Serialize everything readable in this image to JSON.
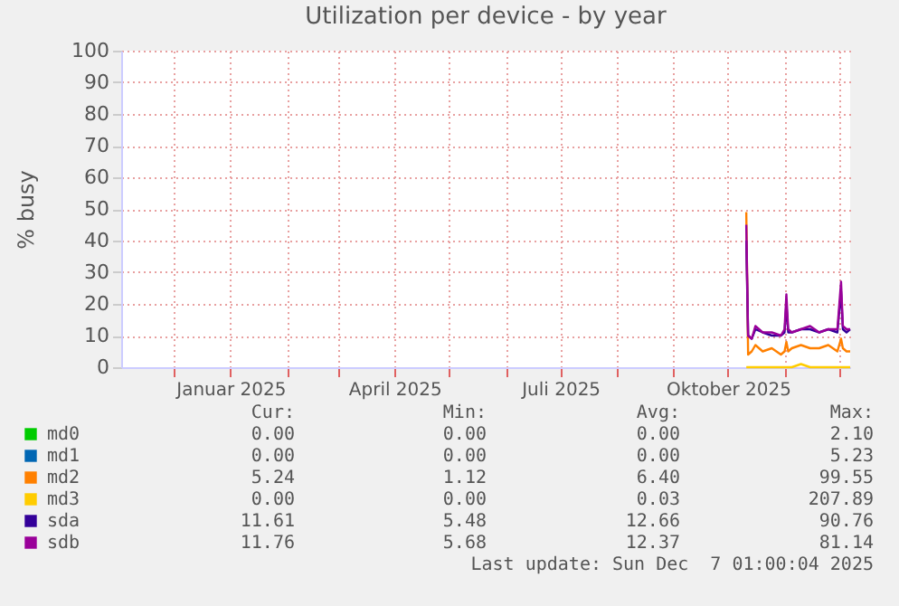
{
  "chart_data": {
    "type": "line",
    "title": "Utilization per device - by year",
    "ylabel": "% busy",
    "x": [
      "2025-10-11",
      "2025-10-12",
      "2025-10-14",
      "2025-10-16",
      "2025-10-20",
      "2025-10-25",
      "2025-10-30",
      "2025-11-01",
      "2025-11-02",
      "2025-11-03",
      "2025-11-05",
      "2025-11-10",
      "2025-11-15",
      "2025-11-20",
      "2025-11-25",
      "2025-11-30",
      "2025-12-02",
      "2025-12-03",
      "2025-12-05",
      "2025-12-07"
    ],
    "series": [
      {
        "name": "md0",
        "color": "#00cc00",
        "values": [
          null,
          null,
          null,
          null,
          null,
          null,
          null,
          null,
          null,
          null,
          null,
          null,
          null,
          null,
          null,
          null,
          null,
          null,
          null,
          null
        ]
      },
      {
        "name": "md1",
        "color": "#0066b3",
        "values": [
          null,
          null,
          null,
          null,
          null,
          null,
          null,
          null,
          null,
          null,
          null,
          null,
          null,
          null,
          null,
          null,
          null,
          null,
          null,
          null
        ]
      },
      {
        "name": "md2",
        "color": "#ff8000",
        "values": [
          49,
          4,
          5,
          7,
          5,
          6,
          4,
          5,
          8,
          5,
          6,
          7,
          6,
          6,
          7,
          5,
          9,
          6,
          5,
          5
        ]
      },
      {
        "name": "md3",
        "color": "#ffcc00",
        "values": [
          0,
          0,
          0,
          0,
          0,
          0,
          0,
          0,
          0,
          0,
          0,
          1,
          0,
          0,
          0,
          0,
          0,
          0,
          0,
          0
        ]
      },
      {
        "name": "sda",
        "color": "#330099",
        "values": [
          40,
          10,
          9,
          12,
          11,
          10,
          10,
          11,
          20,
          11,
          11,
          12,
          12,
          11,
          12,
          11,
          24,
          12,
          11,
          12
        ]
      },
      {
        "name": "sdb",
        "color": "#990099",
        "values": [
          45,
          10,
          9,
          13,
          11,
          11,
          10,
          12,
          23,
          12,
          11,
          12,
          13,
          11,
          12,
          12,
          27,
          13,
          12,
          12
        ]
      }
    ],
    "xlim": [
      "2024-11-02",
      "2025-12-07"
    ],
    "xticks": [
      {
        "value": "2024-12-01",
        "label": null
      },
      {
        "value": "2025-01-01",
        "label": "Januar 2025"
      },
      {
        "value": "2025-02-01",
        "label": null
      },
      {
        "value": "2025-03-01",
        "label": null
      },
      {
        "value": "2025-04-01",
        "label": "April 2025"
      },
      {
        "value": "2025-05-01",
        "label": null
      },
      {
        "value": "2025-06-01",
        "label": null
      },
      {
        "value": "2025-07-01",
        "label": "Juli 2025"
      },
      {
        "value": "2025-08-01",
        "label": null
      },
      {
        "value": "2025-09-01",
        "label": null
      },
      {
        "value": "2025-10-01",
        "label": "Oktober 2025"
      },
      {
        "value": "2025-11-01",
        "label": null
      },
      {
        "value": "2025-12-01",
        "label": null
      }
    ],
    "ylim": [
      0,
      100
    ],
    "yticks": [
      0,
      10,
      20,
      30,
      40,
      50,
      60,
      70,
      80,
      90,
      100
    ],
    "grid": true,
    "legend": "bottom",
    "line_style": "solid",
    "marker": "none",
    "annotations": [
      "Cur:",
      "Min:",
      "Avg:",
      "Max:",
      "0.00",
      "0.00",
      "0.00",
      "2.10",
      "0.00",
      "0.00",
      "0.00",
      "5.23",
      "5.24",
      "1.12",
      "6.40",
      "99.55",
      "0.00",
      "0.00",
      "0.03",
      "207.89",
      "11.61",
      "5.48",
      "12.66",
      "90.76",
      "11.76",
      "5.68",
      "12.37",
      "81.14",
      "Last update: Sun Dec  7 01:00:04 2025"
    ]
  }
}
